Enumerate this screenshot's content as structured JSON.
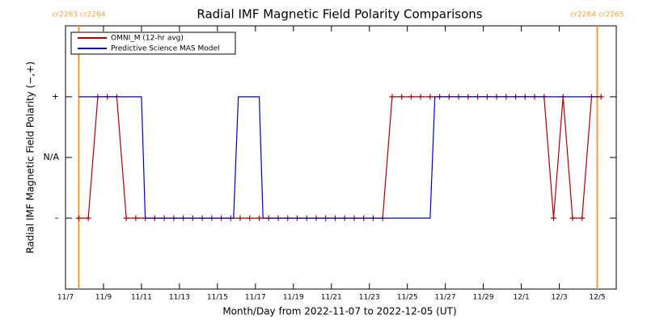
{
  "chart_data": {
    "type": "line",
    "title": "Radial IMF Magnetic Field Polarity Comparisons",
    "x_label": "Month/Day from 2022-11-07 to 2022-12-05 (UT)",
    "y_label": "Radial IMF Magnetic Field Polarity (−,+)",
    "xlim": [
      0,
      29
    ],
    "xticks": [
      {
        "value": 0,
        "label": "11/7"
      },
      {
        "value": 2,
        "label": "11/9"
      },
      {
        "value": 4,
        "label": "11/11"
      },
      {
        "value": 6,
        "label": "11/13"
      },
      {
        "value": 8,
        "label": "11/15"
      },
      {
        "value": 10,
        "label": "11/17"
      },
      {
        "value": 12,
        "label": "11/19"
      },
      {
        "value": 14,
        "label": "11/21"
      },
      {
        "value": 16,
        "label": "11/23"
      },
      {
        "value": 18,
        "label": "11/25"
      },
      {
        "value": 20,
        "label": "11/27"
      },
      {
        "value": 22,
        "label": "11/29"
      },
      {
        "value": 24,
        "label": "12/1"
      },
      {
        "value": 26,
        "label": "12/3"
      },
      {
        "value": 28,
        "label": "12/5"
      }
    ],
    "ylim": [
      -2.17,
      2.17
    ],
    "yticks": [
      {
        "value": -1,
        "label": "–"
      },
      {
        "value": 0,
        "label": "N/A"
      },
      {
        "value": 1,
        "label": "+"
      }
    ],
    "boundaries": [
      {
        "x": 0.7,
        "label": "cr2263 cr2264",
        "color": "#f0a030"
      },
      {
        "x": 28,
        "label": "cr2264 cr2265",
        "color": "#f0a030"
      }
    ],
    "legend_position": "upper left",
    "series": [
      {
        "name": "OMNI_M (12-hr avg)",
        "color": "#b00000",
        "marker": "+",
        "x": [
          0.7,
          1.2,
          1.7,
          2.2,
          2.7,
          3.2,
          3.7,
          4.2,
          4.7,
          5.2,
          5.7,
          6.2,
          6.7,
          7.2,
          7.7,
          8.2,
          8.7,
          9.2,
          9.7,
          10.2,
          10.7,
          11.2,
          11.7,
          12.2,
          12.7,
          13.2,
          13.7,
          14.2,
          14.7,
          15.2,
          15.7,
          16.2,
          16.7,
          17.2,
          17.7,
          18.2,
          18.7,
          19.2,
          19.7,
          20.2,
          20.7,
          21.2,
          21.7,
          22.2,
          22.7,
          23.2,
          23.7,
          24.2,
          24.7,
          25.2,
          25.7,
          26.2,
          26.7,
          27.2,
          27.7,
          28.2
        ],
        "values": [
          -1,
          -1,
          1,
          1,
          1,
          -1,
          -1,
          -1,
          -1,
          -1,
          -1,
          -1,
          -1,
          -1,
          -1,
          -1,
          -1,
          -1,
          -1,
          -1,
          -1,
          -1,
          -1,
          -1,
          -1,
          -1,
          -1,
          -1,
          -1,
          -1,
          -1,
          -1,
          -1,
          1,
          1,
          1,
          1,
          1,
          1,
          1,
          1,
          1,
          1,
          1,
          1,
          1,
          1,
          1,
          1,
          1,
          -1,
          1,
          -1,
          -1,
          1,
          1
        ]
      },
      {
        "name": "Predictive Science MAS Model",
        "color": "#0000c8",
        "x": [
          0.7,
          4.0,
          4.2,
          8.85,
          9.1,
          10.2,
          10.4,
          19.2,
          19.45,
          28.1
        ],
        "values": [
          1,
          1,
          -1,
          -1,
          1,
          1,
          -1,
          -1,
          1,
          1
        ]
      }
    ]
  }
}
